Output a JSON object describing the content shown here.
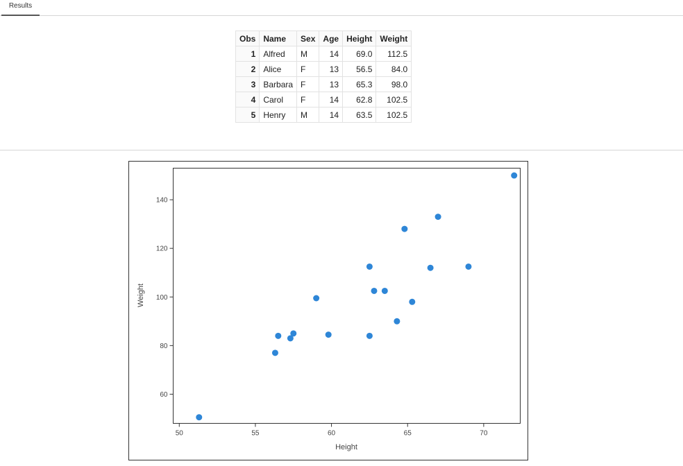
{
  "tabs": [
    {
      "label": "Results"
    }
  ],
  "table": {
    "columns": [
      "Obs",
      "Name",
      "Sex",
      "Age",
      "Height",
      "Weight"
    ],
    "rows": [
      [
        "1",
        "Alfred",
        "M",
        "14",
        "69.0",
        "112.5"
      ],
      [
        "2",
        "Alice",
        "F",
        "13",
        "56.5",
        "84.0"
      ],
      [
        "3",
        "Barbara",
        "F",
        "13",
        "65.3",
        "98.0"
      ],
      [
        "4",
        "Carol",
        "F",
        "14",
        "62.8",
        "102.5"
      ],
      [
        "5",
        "Henry",
        "M",
        "14",
        "63.5",
        "102.5"
      ]
    ]
  },
  "chart_data": {
    "type": "scatter",
    "title": "",
    "xlabel": "Height",
    "ylabel": "Weight",
    "xlim": [
      49.6,
      72.4
    ],
    "ylim": [
      48,
      153
    ],
    "xticks": [
      50,
      55,
      60,
      65,
      70
    ],
    "yticks": [
      60,
      80,
      100,
      120,
      140
    ],
    "grid": false,
    "marker_color": "#2e86d7",
    "points": [
      {
        "x": 51.3,
        "y": 50.5
      },
      {
        "x": 56.3,
        "y": 77.0
      },
      {
        "x": 56.5,
        "y": 84.0
      },
      {
        "x": 57.3,
        "y": 83.0
      },
      {
        "x": 57.5,
        "y": 85.0
      },
      {
        "x": 59.0,
        "y": 99.5
      },
      {
        "x": 59.8,
        "y": 84.5
      },
      {
        "x": 62.5,
        "y": 112.5
      },
      {
        "x": 62.5,
        "y": 84.0
      },
      {
        "x": 62.8,
        "y": 102.5
      },
      {
        "x": 63.5,
        "y": 102.5
      },
      {
        "x": 64.3,
        "y": 90.0
      },
      {
        "x": 64.8,
        "y": 128.0
      },
      {
        "x": 65.3,
        "y": 98.0
      },
      {
        "x": 66.5,
        "y": 112.0
      },
      {
        "x": 67.0,
        "y": 133.0
      },
      {
        "x": 69.0,
        "y": 112.5
      },
      {
        "x": 72.0,
        "y": 150.0
      }
    ]
  }
}
